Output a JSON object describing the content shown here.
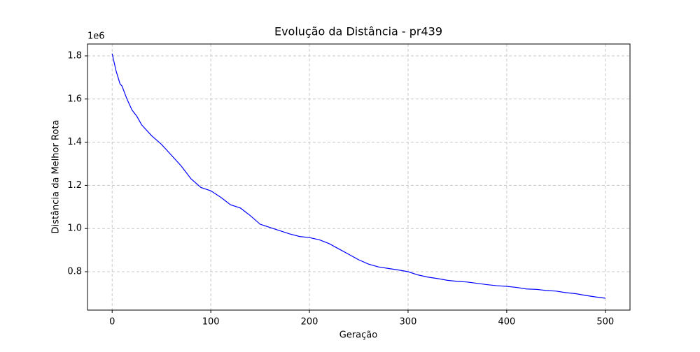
{
  "chart_data": {
    "type": "line",
    "title": "Evolução da Distância - pr439",
    "x_label": "Geração",
    "y_label": "Distância da Melhor Rota",
    "y_offset_label": "1e6",
    "x": [
      0,
      2,
      4,
      6,
      8,
      10,
      15,
      20,
      25,
      30,
      40,
      50,
      60,
      70,
      80,
      90,
      100,
      110,
      120,
      130,
      140,
      150,
      160,
      170,
      180,
      190,
      200,
      210,
      220,
      230,
      240,
      250,
      260,
      270,
      280,
      290,
      300,
      310,
      320,
      330,
      340,
      350,
      360,
      370,
      380,
      390,
      400,
      410,
      420,
      430,
      440,
      450,
      460,
      470,
      480,
      490,
      500
    ],
    "series": [
      {
        "name": "Distância",
        "color": "#0000ff",
        "values": [
          1.81,
          1.77,
          1.73,
          1.7,
          1.67,
          1.66,
          1.6,
          1.55,
          1.52,
          1.48,
          1.43,
          1.39,
          1.34,
          1.29,
          1.23,
          1.19,
          1.175,
          1.145,
          1.11,
          1.095,
          1.06,
          1.02,
          1.005,
          0.99,
          0.975,
          0.963,
          0.958,
          0.948,
          0.93,
          0.905,
          0.88,
          0.855,
          0.835,
          0.822,
          0.815,
          0.808,
          0.8,
          0.785,
          0.775,
          0.768,
          0.76,
          0.755,
          0.752,
          0.746,
          0.74,
          0.735,
          0.732,
          0.727,
          0.72,
          0.718,
          0.713,
          0.71,
          0.703,
          0.698,
          0.69,
          0.683,
          0.677
        ]
      }
    ],
    "xlim": [
      -25,
      525
    ],
    "xticks": [
      0,
      100,
      200,
      300,
      400,
      500
    ],
    "ylim": [
      0.622,
      1.855
    ],
    "yticks": [
      0.8,
      {
        "value": 1,
        "label": "1.0"
      },
      1.2,
      1.4,
      1.6,
      1.8
    ],
    "grid": true
  }
}
